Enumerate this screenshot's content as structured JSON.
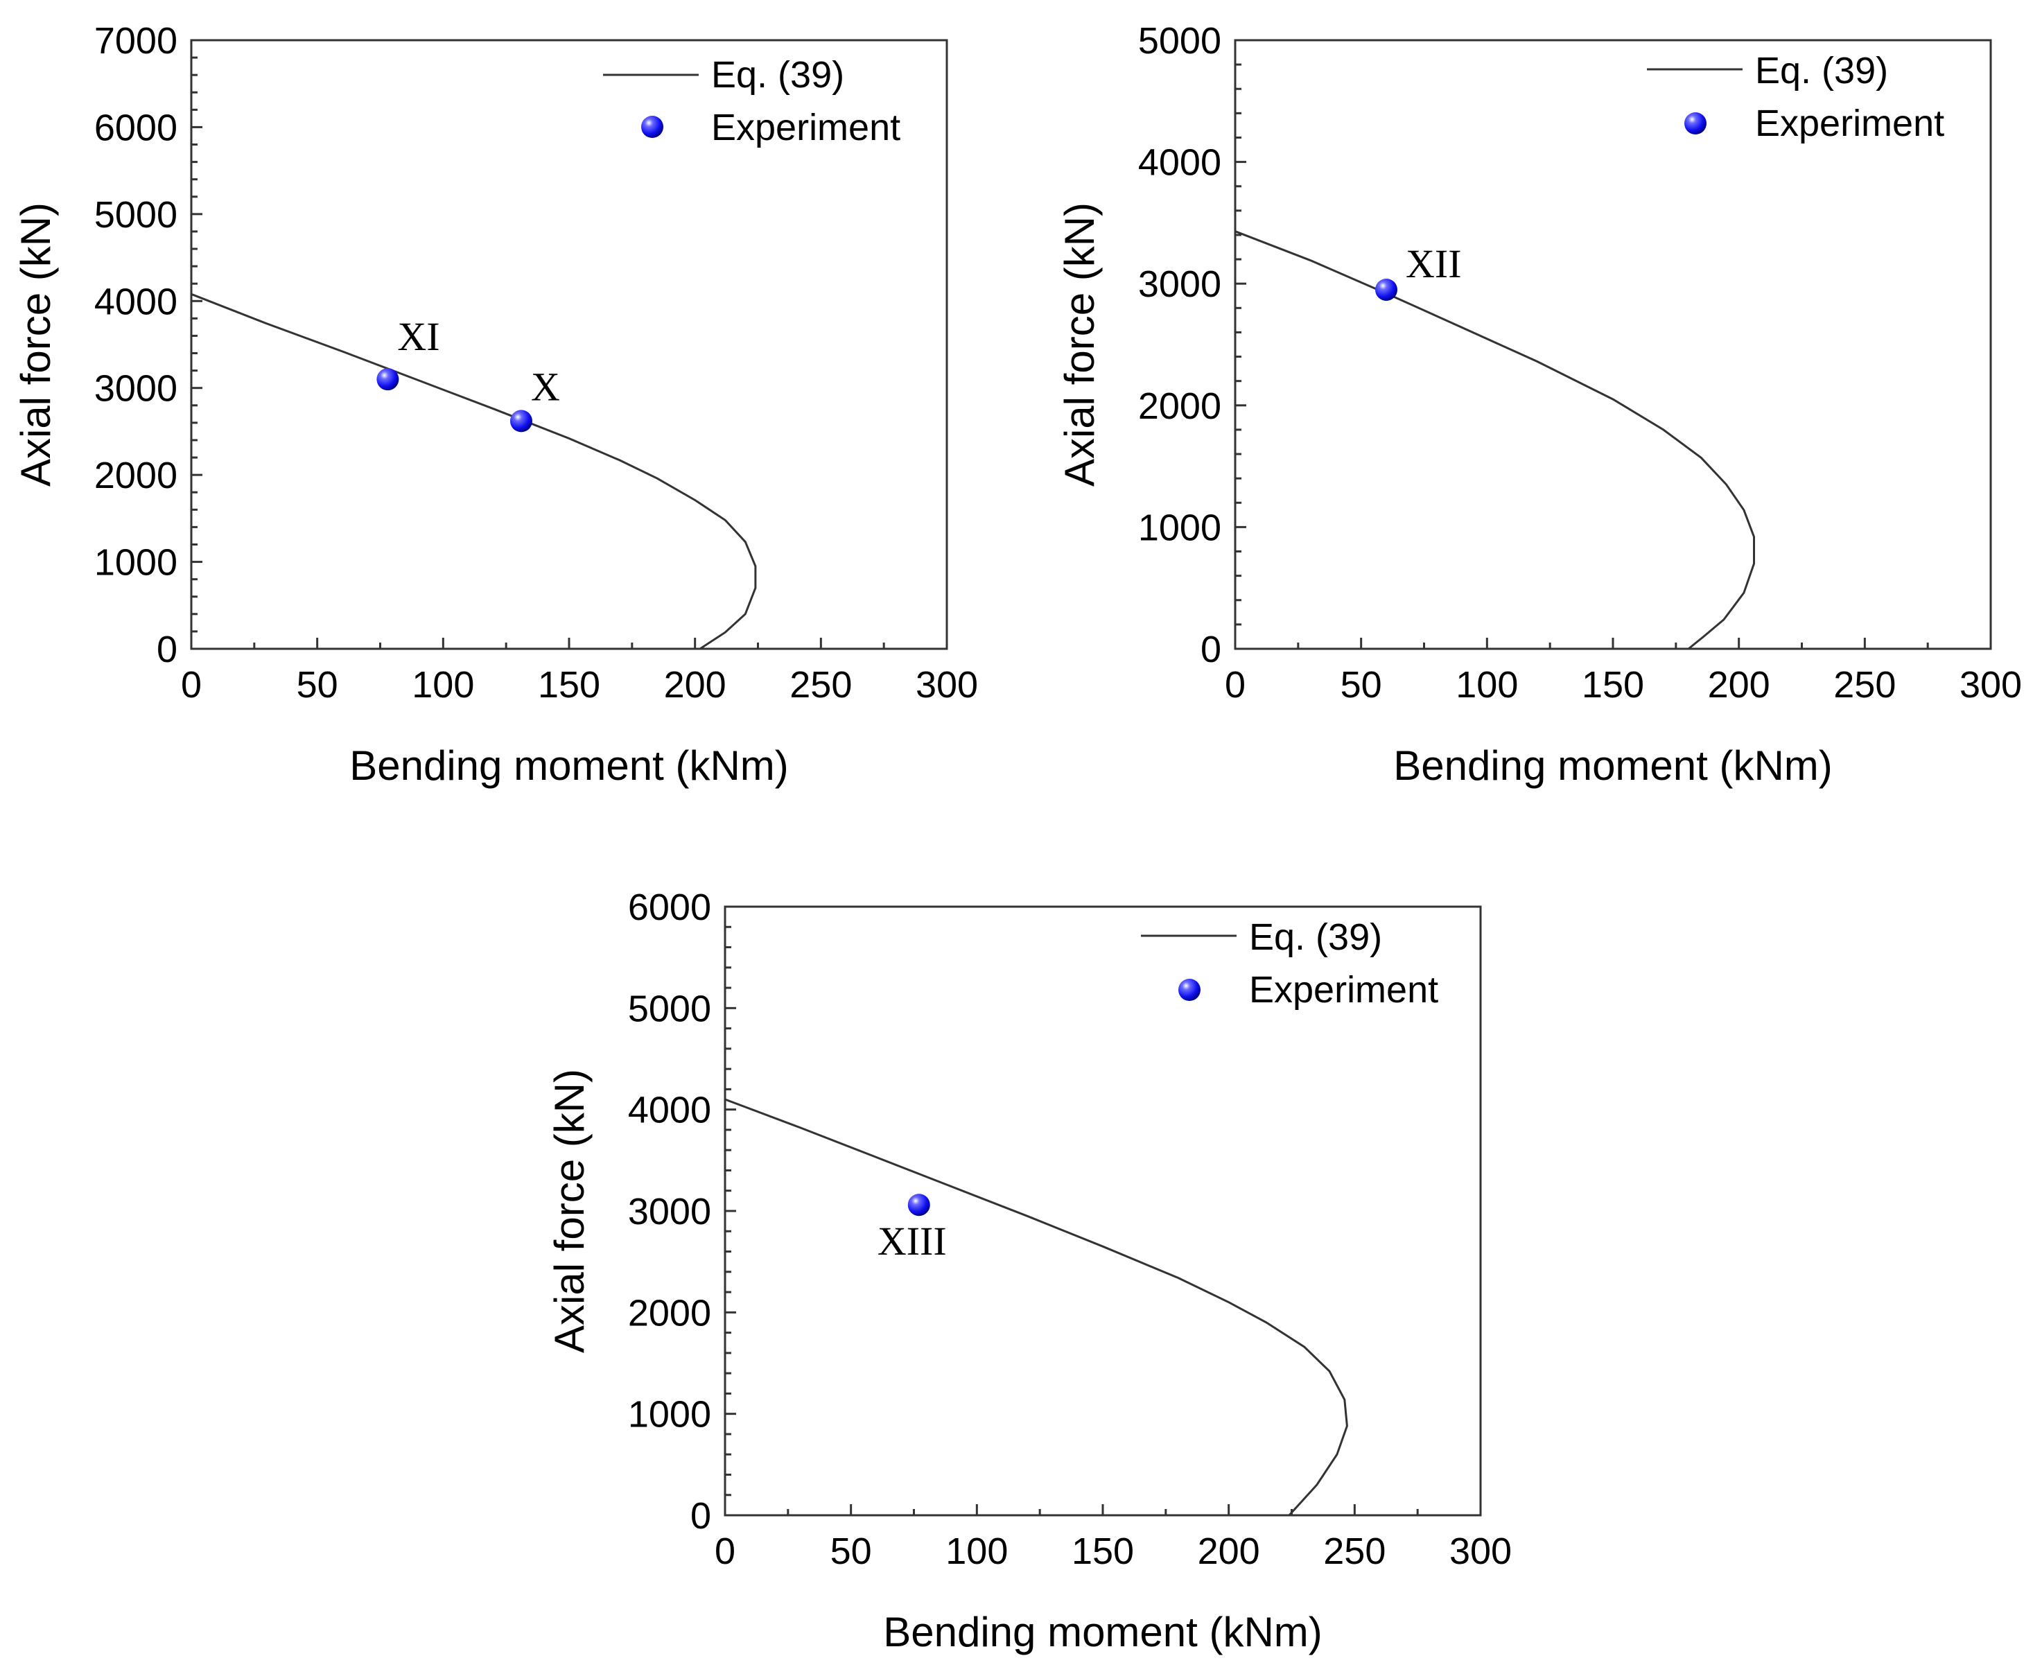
{
  "colors": {
    "curve": "#333333",
    "marker": "#1a1aff",
    "axis": "#333333"
  },
  "chart_data": [
    {
      "type": "line",
      "title": "",
      "xlabel": "Bending moment (kNm)",
      "ylabel": "Axial force (kN)",
      "xlim": [
        0,
        300
      ],
      "ylim": [
        0,
        7000
      ],
      "xticks": [
        0,
        50,
        100,
        150,
        200,
        250,
        300
      ],
      "yticks": [
        0,
        1000,
        2000,
        3000,
        4000,
        5000,
        6000,
        7000
      ],
      "legend": {
        "position": "top-right",
        "line_label": "Eq. (39)",
        "marker_label": "Experiment"
      },
      "series": [
        {
          "name": "Eq. (39)",
          "kind": "line",
          "x": [
            0,
            30,
            60,
            90,
            120,
            150,
            170,
            185,
            200,
            212,
            220,
            224,
            224,
            220,
            212,
            202
          ],
          "y": [
            4080,
            3740,
            3420,
            3090,
            2760,
            2420,
            2170,
            1960,
            1710,
            1480,
            1230,
            950,
            700,
            400,
            190,
            0
          ]
        },
        {
          "name": "Experiment",
          "kind": "scatter",
          "points": [
            {
              "x": 78,
              "y": 3100,
              "label": "XI"
            },
            {
              "x": 131,
              "y": 2620,
              "label": "X"
            }
          ]
        }
      ]
    },
    {
      "type": "line",
      "title": "",
      "xlabel": "Bending moment (kNm)",
      "ylabel": "Axial force (kN)",
      "xlim": [
        0,
        300
      ],
      "ylim": [
        0,
        5000
      ],
      "xticks": [
        0,
        50,
        100,
        150,
        200,
        250,
        300
      ],
      "yticks": [
        0,
        1000,
        2000,
        3000,
        4000,
        5000
      ],
      "legend": {
        "position": "top-right",
        "line_label": "Eq. (39)",
        "marker_label": "Experiment"
      },
      "series": [
        {
          "name": "Eq. (39)",
          "kind": "line",
          "x": [
            0,
            30,
            60,
            90,
            120,
            150,
            170,
            185,
            195,
            202,
            206,
            206,
            202,
            194,
            186,
            180
          ],
          "y": [
            3430,
            3190,
            2920,
            2640,
            2360,
            2050,
            1800,
            1570,
            1350,
            1140,
            920,
            700,
            460,
            240,
            100,
            0
          ]
        },
        {
          "name": "Experiment",
          "kind": "scatter",
          "points": [
            {
              "x": 60,
              "y": 2950,
              "label": "XII"
            }
          ]
        }
      ]
    },
    {
      "type": "line",
      "title": "",
      "xlabel": "Bending moment (kNm)",
      "ylabel": "Axial force (kN)",
      "xlim": [
        0,
        300
      ],
      "ylim": [
        0,
        6000
      ],
      "xticks": [
        0,
        50,
        100,
        150,
        200,
        250,
        300
      ],
      "yticks": [
        0,
        1000,
        2000,
        3000,
        4000,
        5000,
        6000
      ],
      "legend": {
        "position": "top-right",
        "line_label": "Eq. (39)",
        "marker_label": "Experiment"
      },
      "series": [
        {
          "name": "Eq. (39)",
          "kind": "line",
          "x": [
            0,
            30,
            60,
            90,
            120,
            150,
            180,
            200,
            215,
            230,
            240,
            246,
            247,
            243,
            235,
            224
          ],
          "y": [
            4100,
            3820,
            3530,
            3240,
            2950,
            2650,
            2340,
            2100,
            1900,
            1660,
            1420,
            1140,
            880,
            600,
            300,
            0
          ]
        },
        {
          "name": "Experiment",
          "kind": "scatter",
          "points": [
            {
              "x": 77,
              "y": 3060,
              "label": "XIII"
            }
          ]
        }
      ]
    }
  ]
}
